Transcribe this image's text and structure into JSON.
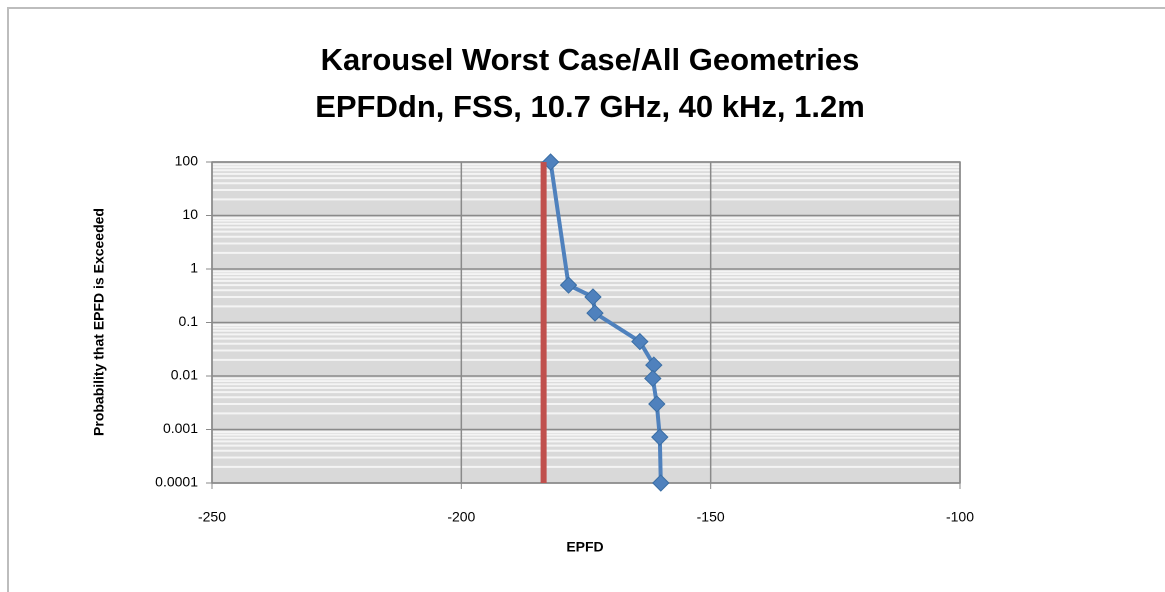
{
  "chart_data": {
    "type": "line",
    "title": "Karousel Worst Case/All Geometries",
    "subtitle": "EPFDdn, FSS, 10.7 GHz, 40 kHz, 1.2m",
    "xlabel": "EPFD",
    "ylabel": "Probability that EPFD is Exceeded",
    "yscale": "log",
    "grid": true,
    "xlim": [
      -250,
      -100
    ],
    "xticks": [
      -250,
      -200,
      -150,
      -100
    ],
    "ylim": [
      0.0001,
      100
    ],
    "yticks": [
      100,
      10,
      1,
      0.1,
      0.01,
      0.001,
      0.0001
    ],
    "series": [
      {
        "color": "#4f81bd",
        "marker": "diamond",
        "x": [
          -182.1,
          -178.5,
          -173.6,
          -173.2,
          -164.2,
          -161.4,
          -161.6,
          -160.8,
          -160.2,
          -160.0
        ],
        "values": [
          100,
          0.5,
          0.3,
          0.15,
          0.044,
          0.016,
          0.009,
          0.003,
          0.00072,
          0.0001
        ]
      },
      {
        "color": "#c0504d",
        "x": [
          -183.5,
          -183.5
        ],
        "values": [
          0.0001,
          100
        ]
      }
    ]
  }
}
